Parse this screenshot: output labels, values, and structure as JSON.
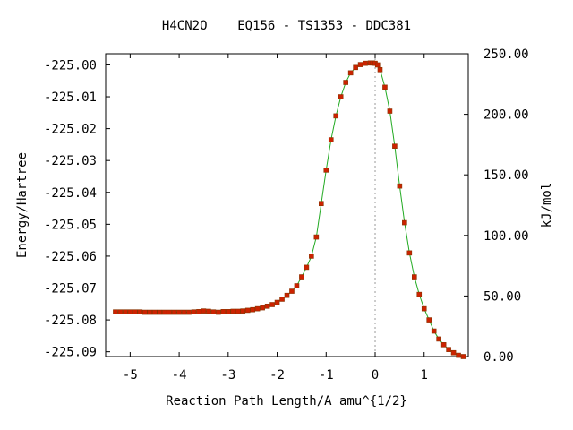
{
  "chart_data": {
    "type": "line",
    "title": "H4CN2O    EQ156 - TS1353 - DDC381",
    "xlabel": "Reaction Path Length/A amu^{1/2}",
    "ylabel": "Energy/Hartree",
    "y2label": "kJ/mol",
    "xlim": [
      -5.5,
      1.9
    ],
    "ylim": [
      -225.0915,
      -224.9965
    ],
    "y2lim": [
      0,
      250
    ],
    "x_ticks": [
      -5,
      -4,
      -3,
      -2,
      -1,
      0,
      1
    ],
    "x_tick_labels": [
      "-5",
      "-4",
      "-3",
      "-2",
      "-1",
      "0",
      "1"
    ],
    "y_ticks": [
      -225.0,
      -225.01,
      -225.02,
      -225.03,
      -225.04,
      -225.05,
      -225.06,
      -225.07,
      -225.08,
      -225.09
    ],
    "y_tick_labels": [
      "-225.00",
      "-225.01",
      "-225.02",
      "-225.03",
      "-225.04",
      "-225.05",
      "-225.06",
      "-225.07",
      "-225.08",
      "-225.09"
    ],
    "y2_ticks": [
      0,
      50,
      100,
      150,
      200,
      250
    ],
    "y2_tick_labels": [
      "0.00",
      "50.00",
      "100.00",
      "150.00",
      "200.00",
      "250.00"
    ],
    "ts_marker_x": 0,
    "grid": false,
    "colors": {
      "line": "#22aa22",
      "marker": "#cc2200",
      "marker_edge": "#883300",
      "ts_line": "#999999",
      "frame": "#000000"
    },
    "series": [
      {
        "x": [
          -5.3,
          -5.2,
          -5.1,
          -5.0,
          -4.9,
          -4.8,
          -4.7,
          -4.6,
          -4.5,
          -4.4,
          -4.3,
          -4.2,
          -4.1,
          -4.0,
          -3.9,
          -3.8,
          -3.7,
          -3.6,
          -3.5,
          -3.4,
          -3.3,
          -3.2,
          -3.1,
          -3.0,
          -2.9,
          -2.8,
          -2.7,
          -2.6,
          -2.5,
          -2.4,
          -2.3,
          -2.2,
          -2.1,
          -2.0,
          -1.9,
          -1.8,
          -1.7,
          -1.6,
          -1.5,
          -1.4,
          -1.3,
          -1.2,
          -1.1,
          -1.0,
          -0.9,
          -0.8,
          -0.7,
          -0.6,
          -0.5,
          -0.4,
          -0.3,
          -0.2,
          -0.1,
          -0.05,
          0.0,
          0.05,
          0.1,
          0.2,
          0.3,
          0.4,
          0.5,
          0.6,
          0.7,
          0.8,
          0.9,
          1.0,
          1.1,
          1.2,
          1.3,
          1.4,
          1.5,
          1.6,
          1.7,
          1.8
        ],
        "y": [
          -225.0775,
          -225.0775,
          -225.0775,
          -225.0775,
          -225.0775,
          -225.0775,
          -225.0776,
          -225.0776,
          -225.0776,
          -225.0776,
          -225.0776,
          -225.0776,
          -225.0776,
          -225.0776,
          -225.0776,
          -225.0776,
          -225.0775,
          -225.0774,
          -225.0772,
          -225.0773,
          -225.0775,
          -225.0776,
          -225.0774,
          -225.0774,
          -225.0773,
          -225.0773,
          -225.0772,
          -225.077,
          -225.0768,
          -225.0765,
          -225.0762,
          -225.0757,
          -225.0752,
          -225.0745,
          -225.0735,
          -225.0723,
          -225.071,
          -225.0693,
          -225.0665,
          -225.0635,
          -225.06,
          -225.054,
          -225.0435,
          -225.033,
          -225.0235,
          -225.016,
          -225.01,
          -225.0055,
          -225.0025,
          -225.0008,
          -224.9999,
          -224.9995,
          -224.9994,
          -224.9994,
          -224.9995,
          -225.0,
          -225.0015,
          -225.007,
          -225.0145,
          -225.0255,
          -225.038,
          -225.0495,
          -225.059,
          -225.0665,
          -225.072,
          -225.0765,
          -225.08,
          -225.0835,
          -225.086,
          -225.0878,
          -225.0893,
          -225.0903,
          -225.0911,
          -225.0915
        ]
      }
    ]
  }
}
